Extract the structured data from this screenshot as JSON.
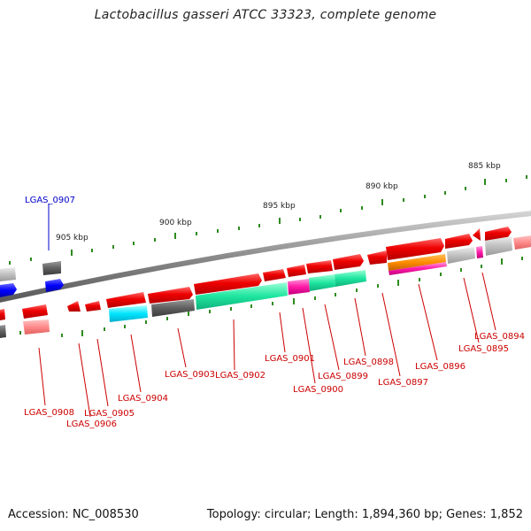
{
  "title": "Lactobacillus gasseri ATCC 33323, complete genome",
  "accession": "Accession: NC_008530",
  "topology": "Topology: circular; Length: 1,894,360 bp; Genes: 1,852",
  "scale_labels": [
    "885 kbp",
    "890 kbp",
    "895 kbp",
    "900 kbp",
    "905 kbp"
  ],
  "colors": {
    "forward_gene": "#ee0000",
    "reverse_gene": "#ff7b7b",
    "backbone": "#808080",
    "tick": "#2e8b1f",
    "label_red": "#cc0000",
    "label_blue": "#0000cc"
  },
  "gene_labels": {
    "g0907": "LGAS_0907",
    "g0908": "LGAS_0908",
    "g0906": "LGAS_0906",
    "g0905": "LGAS_0905",
    "g0904": "LGAS_0904",
    "g0903": "LGAS_0903",
    "g0902": "LGAS_0902",
    "g0901": "LGAS_0901",
    "g0900": "LGAS_0900",
    "g0899": "LGAS_0899",
    "g0898": "LGAS_0898",
    "g0897": "LGAS_0897",
    "g0896": "LGAS_0896",
    "g0895": "LGAS_0895",
    "g0894": "LGAS_0894"
  }
}
